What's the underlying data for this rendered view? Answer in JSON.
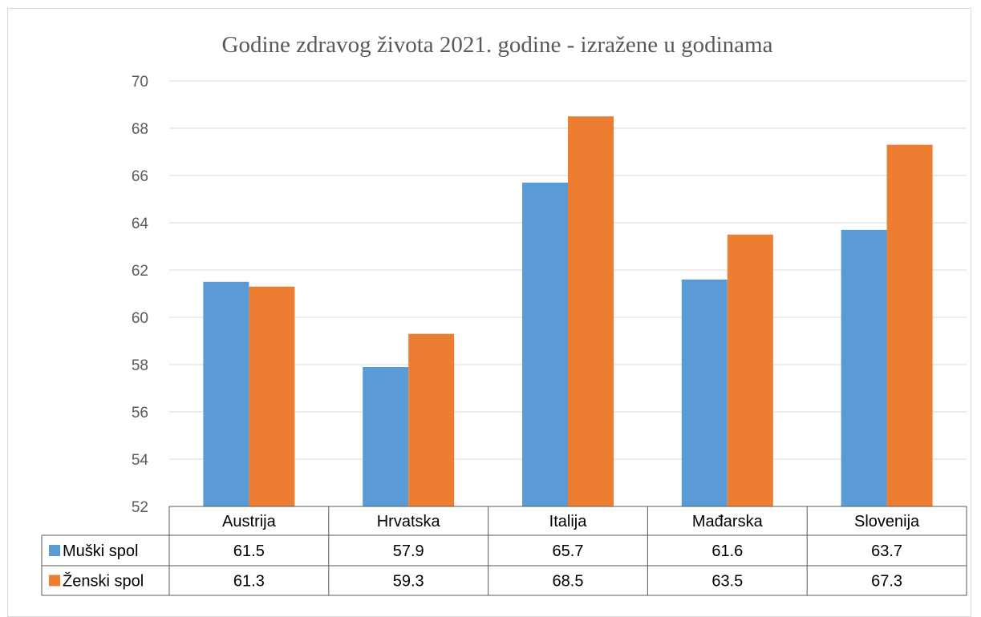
{
  "chart_data": {
    "type": "bar",
    "title": "Godine zdravog života 2021. godine - izražene u godinama",
    "categories": [
      "Austrija",
      "Hrvatska",
      "Italija",
      "Mađarska",
      "Slovenija"
    ],
    "series": [
      {
        "name": "Muški spol",
        "color": "#5b9bd5",
        "values": [
          61.5,
          57.9,
          65.7,
          61.6,
          63.7
        ]
      },
      {
        "name": "Ženski spol",
        "color": "#ed7d31",
        "values": [
          61.3,
          59.3,
          68.5,
          63.5,
          67.3
        ]
      }
    ],
    "yticks": [
      "70",
      "68",
      "66",
      "64",
      "62",
      "60",
      "58",
      "56",
      "54",
      "52"
    ],
    "ylim": [
      52,
      70
    ],
    "grid": true,
    "legend": "data-table",
    "table_values": [
      [
        "61.5",
        "57.9",
        "65.7",
        "61.6",
        "63.7"
      ],
      [
        "61.3",
        "59.3",
        "68.5",
        "63.5",
        "67.3"
      ]
    ]
  }
}
